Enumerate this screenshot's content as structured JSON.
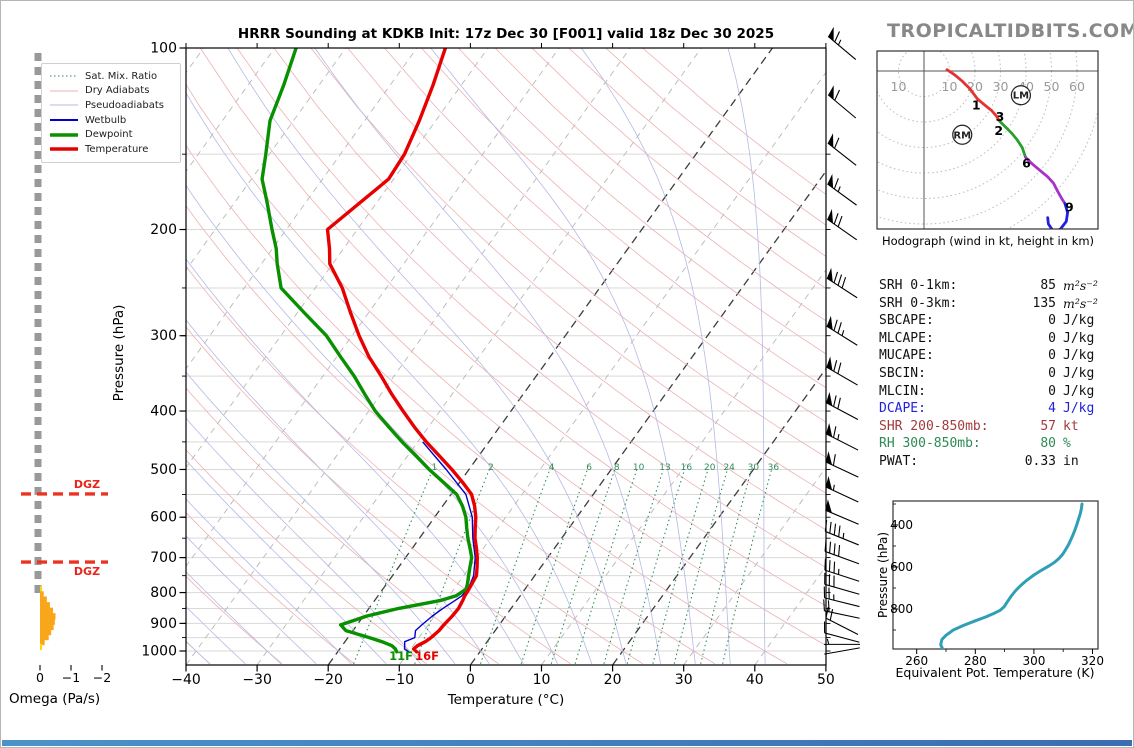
{
  "page": {
    "brand": "TROPICALTIDBITS.COM"
  },
  "skewt": {
    "title": "HRRR Sounding at KDKB Init: 17z Dec 30 [F001] valid 18z Dec 30 2025",
    "xlabel": "Temperature (°C)",
    "ylabel": "Pressure (hPa)",
    "surface_dewpoint_label": "11F",
    "surface_temp_label": "16F",
    "legend": [
      {
        "label": "Sat. Mix. Ratio",
        "color": "#2E8B57",
        "dash": "1.5 2.5",
        "width": 1
      },
      {
        "label": "Dry Adiabats",
        "color": "#EDB2B2",
        "dash": "",
        "width": 1
      },
      {
        "label": "Pseudoadiabats",
        "color": "#B4BAE4",
        "dash": "",
        "width": 1
      },
      {
        "label": "Wetbulb",
        "color": "#0000CD",
        "dash": "",
        "width": 2
      },
      {
        "label": "Dewpoint",
        "color": "#089000",
        "dash": "",
        "width": 3.5
      },
      {
        "label": "Temperature",
        "color": "#E80000",
        "dash": "",
        "width": 3.5
      }
    ]
  },
  "omega_panel": {
    "xlabel": "Omega (Pa/s)",
    "dgz_label": "DGZ"
  },
  "stats": [
    {
      "label": "SRH 0-1km:",
      "value": "85",
      "unit": "m²s⁻²",
      "color": "#111111",
      "math": true
    },
    {
      "label": "SRH 0-3km:",
      "value": "135",
      "unit": "m²s⁻²",
      "color": "#111111",
      "math": true
    },
    {
      "label": "SBCAPE:",
      "value": "0",
      "unit": "J/kg",
      "color": "#111111",
      "math": false
    },
    {
      "label": "MLCAPE:",
      "value": "0",
      "unit": "J/kg",
      "color": "#111111",
      "math": false
    },
    {
      "label": "MUCAPE:",
      "value": "0",
      "unit": "J/kg",
      "color": "#111111",
      "math": false
    },
    {
      "label": "SBCIN:",
      "value": "0",
      "unit": "J/kg",
      "color": "#111111",
      "math": false
    },
    {
      "label": "MLCIN:",
      "value": "0",
      "unit": "J/kg",
      "color": "#111111",
      "math": false
    },
    {
      "label": "DCAPE:",
      "value": "4",
      "unit": "J/kg",
      "color": "#2222D8",
      "math": false
    },
    {
      "label": "SHR 200-850mb:",
      "value": "57",
      "unit": "kt",
      "color": "#A33C3C",
      "math": false
    },
    {
      "label": "RH 300-850mb:",
      "value": "80",
      "unit": "%",
      "color": "#2E8B57",
      "math": false
    },
    {
      "label": "PWAT:",
      "value": "0.33",
      "unit": "in",
      "color": "#111111",
      "math": false
    }
  ],
  "hodograph_panel": {
    "caption": "Hodograph (wind in kt, height in km)"
  },
  "theta_e_panel": {
    "xlabel": "Equivalent Pot. Temperature (K)",
    "ylabel": "Pressure (hPa)"
  },
  "chart_data": [
    {
      "name": "skewt_sounding",
      "type": "line",
      "xlabel": "Temperature (°C)",
      "ylabel": "Pressure (hPa)",
      "xlim": [
        -40,
        50
      ],
      "ylim": [
        1050,
        100
      ],
      "pressure_ticks": [
        100,
        200,
        300,
        400,
        500,
        600,
        700,
        800,
        900,
        1000
      ],
      "temp_ticks": [
        -40,
        -30,
        -20,
        -10,
        0,
        10,
        20,
        30,
        40,
        50
      ],
      "pressure_hpa": [
        100,
        115,
        132,
        150,
        165,
        180,
        200,
        215,
        228,
        250,
        275,
        300,
        325,
        350,
        375,
        400,
        425,
        450,
        475,
        500,
        525,
        550,
        575,
        600,
        625,
        650,
        675,
        700,
        725,
        750,
        775,
        790,
        810,
        825,
        850,
        875,
        905,
        925,
        950,
        965,
        980,
        992,
        1003
      ],
      "temperature_c": [
        -66,
        -64,
        -62.3,
        -61,
        -60.7,
        -62.3,
        -64.2,
        -62,
        -60.4,
        -56.2,
        -52.5,
        -49,
        -45.5,
        -41.8,
        -38.5,
        -35.2,
        -32,
        -28.8,
        -25.5,
        -22.4,
        -19.6,
        -17.1,
        -15.5,
        -14.2,
        -13.2,
        -12.2,
        -11,
        -9.9,
        -9,
        -8.2,
        -8,
        -7.9,
        -7.8,
        -7.6,
        -7.4,
        -7.5,
        -7.8,
        -7.9,
        -8.3,
        -8.7,
        -9.4,
        -9.6,
        -8.9
      ],
      "dewpoint_c": [
        -87,
        -85,
        -83.3,
        -80.5,
        -78.5,
        -75.5,
        -72,
        -69.5,
        -67.8,
        -64.8,
        -59,
        -53.6,
        -49.5,
        -45.6,
        -42.3,
        -39.1,
        -35.6,
        -32.2,
        -28.8,
        -25.6,
        -22.3,
        -19.2,
        -17.2,
        -15.6,
        -14.4,
        -13.2,
        -11.9,
        -10.7,
        -10,
        -9.3,
        -8.6,
        -8.3,
        -9,
        -10.8,
        -15.8,
        -19.5,
        -22.3,
        -21,
        -17,
        -14.8,
        -13,
        -12.2,
        -11.7
      ],
      "wetbulb": [
        [
          450,
          -29.3
        ],
        [
          500,
          -23.2
        ],
        [
          550,
          -17.9
        ],
        [
          600,
          -14.7
        ],
        [
          650,
          -12.5
        ],
        [
          700,
          -10.2
        ],
        [
          750,
          -8.6
        ],
        [
          775,
          -8.2
        ],
        [
          790,
          -8.1
        ],
        [
          810,
          -8.2
        ],
        [
          825,
          -8.7
        ],
        [
          850,
          -9.6
        ],
        [
          875,
          -10.3
        ],
        [
          905,
          -10.9
        ],
        [
          925,
          -11.2
        ],
        [
          950,
          -10.6
        ],
        [
          965,
          -11.6
        ],
        [
          980,
          -11.2
        ],
        [
          992,
          -10.9
        ],
        [
          1003,
          -10.0
        ]
      ],
      "mixing_ratio_gkg": [
        1,
        2,
        4,
        6,
        8,
        10,
        13,
        16,
        20,
        24,
        30,
        36
      ],
      "isotherms_c": {
        "start": -110,
        "end": 40,
        "step": 10,
        "highlight": [
          -20,
          0,
          20
        ]
      },
      "dry_adiabats_c": {
        "start": -40,
        "end": 180,
        "step": 10
      },
      "moist_adiabats_c": {
        "start": -40,
        "end": 40,
        "step": 5
      },
      "wind_barbs_p_kt_dir": [
        [
          100,
          65,
          310
        ],
        [
          125,
          60,
          310
        ],
        [
          150,
          60,
          308
        ],
        [
          175,
          65,
          306
        ],
        [
          200,
          70,
          305
        ],
        [
          250,
          80,
          303
        ],
        [
          300,
          75,
          302
        ],
        [
          350,
          70,
          300
        ],
        [
          400,
          70,
          298
        ],
        [
          450,
          65,
          297
        ],
        [
          500,
          60,
          295
        ],
        [
          550,
          55,
          295
        ],
        [
          600,
          50,
          293
        ],
        [
          650,
          45,
          292
        ],
        [
          700,
          40,
          290
        ],
        [
          750,
          35,
          288
        ],
        [
          790,
          30,
          286
        ],
        [
          830,
          25,
          284
        ],
        [
          870,
          20,
          282
        ],
        [
          910,
          20,
          297
        ],
        [
          950,
          10,
          285
        ],
        [
          975,
          5,
          270
        ],
        [
          1000,
          2,
          260
        ]
      ]
    },
    {
      "name": "hodograph",
      "type": "line",
      "rings_kt": [
        10,
        20,
        30,
        40,
        50,
        60,
        70
      ],
      "ring_labels_kt": [
        -10,
        10,
        20,
        30,
        40,
        50,
        60
      ],
      "segments": [
        {
          "name": "0-3km",
          "color": "#E53232",
          "points": [
            [
              9,
              0.5
            ],
            [
              12,
              -1.5
            ],
            [
              15,
              -4
            ],
            [
              18,
              -7
            ],
            [
              21,
              -11
            ],
            [
              24,
              -13.5
            ],
            [
              26.5,
              -15.5
            ],
            [
              28.5,
              -17.8
            ],
            [
              29.5,
              -19.5
            ]
          ]
        },
        {
          "name": "3-6km",
          "color": "#2AA02A",
          "points": [
            [
              29.5,
              -19.5
            ],
            [
              32,
              -22
            ],
            [
              34.5,
              -24.5
            ],
            [
              36.5,
              -27
            ],
            [
              38.5,
              -30
            ],
            [
              39.8,
              -33.8
            ]
          ]
        },
        {
          "name": "6-9km",
          "color": "#A832C8",
          "points": [
            [
              39.8,
              -33.8
            ],
            [
              42.5,
              -36.5
            ],
            [
              45.5,
              -39
            ],
            [
              48.5,
              -41.5
            ],
            [
              50.8,
              -44
            ],
            [
              52.3,
              -47
            ],
            [
              54,
              -50
            ],
            [
              55.3,
              -52
            ]
          ]
        },
        {
          "name": "9-12km",
          "color": "#2020E0",
          "points": [
            [
              55.3,
              -52
            ],
            [
              56.3,
              -55.5
            ],
            [
              55.8,
              -59
            ],
            [
              53.5,
              -62
            ],
            [
              50.8,
              -63
            ],
            [
              48.8,
              -60
            ],
            [
              48.5,
              -57.5
            ]
          ]
        }
      ],
      "height_labels_km": [
        [
          "1",
          20.5,
          -13.5
        ],
        [
          "2",
          29.3,
          -23.5
        ],
        [
          "3",
          29.8,
          -18.0
        ],
        [
          "6",
          40.2,
          -36.3
        ],
        [
          "9",
          57.0,
          -53.5
        ]
      ],
      "storm_motion": [
        [
          "RM",
          15,
          -25
        ],
        [
          "LM",
          38,
          -9.5
        ]
      ]
    },
    {
      "name": "omega",
      "type": "bar",
      "xlabel": "Omega (Pa/s)",
      "ticks": [
        0,
        -1,
        -2
      ],
      "bars_p_pas": [
        [
          790,
          -0.05
        ],
        [
          806,
          -0.12
        ],
        [
          822,
          -0.22
        ],
        [
          840,
          -0.32
        ],
        [
          858,
          -0.42
        ],
        [
          876,
          -0.5
        ],
        [
          894,
          -0.48
        ],
        [
          912,
          -0.44
        ],
        [
          930,
          -0.36
        ],
        [
          948,
          -0.28
        ],
        [
          966,
          -0.15
        ],
        [
          984,
          -0.06
        ]
      ],
      "near_zero_span_hpa": [
        105,
        780
      ],
      "dgz_levels_hpa": [
        549,
        712
      ],
      "bar_color": "#F9A61A",
      "small_bar_color": "#FFD600"
    },
    {
      "name": "theta_e",
      "type": "line",
      "xlabel": "Equivalent Pot. Temperature (K)",
      "ylabel": "Pressure (hPa)",
      "x_ticks": [
        260,
        280,
        300,
        320
      ],
      "y_ticks": [
        400,
        600,
        800
      ],
      "color": "#2E9FB5",
      "curve_k_hpa": [
        [
          269,
          995
        ],
        [
          268.2,
          970
        ],
        [
          268.6,
          945
        ],
        [
          270,
          925
        ],
        [
          272.5,
          900
        ],
        [
          276,
          878
        ],
        [
          280,
          856
        ],
        [
          283.5,
          838
        ],
        [
          286.5,
          820
        ],
        [
          288.5,
          806
        ],
        [
          289.8,
          790
        ],
        [
          291,
          765
        ],
        [
          292.3,
          738
        ],
        [
          293.8,
          712
        ],
        [
          295.5,
          688
        ],
        [
          297.5,
          664
        ],
        [
          300,
          638
        ],
        [
          302.5,
          616
        ],
        [
          305,
          596
        ],
        [
          307,
          578
        ],
        [
          308.5,
          560
        ],
        [
          309.8,
          540
        ],
        [
          310.8,
          518
        ],
        [
          311.8,
          494
        ],
        [
          312.6,
          470
        ],
        [
          313.3,
          448
        ],
        [
          314,
          424
        ],
        [
          314.6,
          400
        ],
        [
          315.2,
          374
        ],
        [
          315.8,
          348
        ],
        [
          316.2,
          322
        ],
        [
          316.4,
          300
        ]
      ]
    }
  ]
}
